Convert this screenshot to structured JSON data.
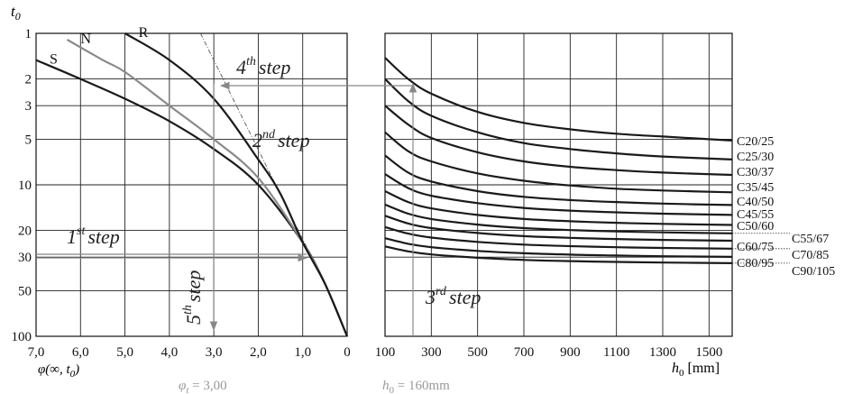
{
  "chart_data": [
    {
      "type": "line",
      "panel": "left",
      "y_axis_label": "t",
      "y_axis_label_sub": "0",
      "x_axis_label": "φ(∞, t",
      "x_axis_label_sub": "0",
      "x_axis_label_end": ")",
      "y_scale": "log-inverted",
      "y_ticks": [
        "1",
        "2",
        "3",
        "5",
        "10",
        "20",
        "30",
        "50",
        "100"
      ],
      "y_tick_values": [
        1,
        2,
        3,
        5,
        10,
        20,
        30,
        50,
        100
      ],
      "x_ticks": [
        "7,0",
        "6,0",
        "5,0",
        "4,0",
        "3,0",
        "2,0",
        "1,0",
        "0"
      ],
      "x_tick_values": [
        7,
        6,
        5,
        4,
        3,
        2,
        1,
        0
      ],
      "xlim": [
        7,
        0
      ],
      "ylim": [
        1,
        100
      ],
      "series": [
        {
          "name": "S",
          "color": "#1a1a1a",
          "points": [
            [
              7.0,
              1.5
            ],
            [
              6.0,
              2.0
            ],
            [
              5.0,
              2.7
            ],
            [
              4.0,
              3.8
            ],
            [
              3.0,
              5.8
            ],
            [
              2.0,
              10
            ],
            [
              1.0,
              24
            ],
            [
              0.5,
              45
            ],
            [
              0.0,
              100
            ]
          ]
        },
        {
          "name": "N",
          "color": "#8a8a8a",
          "points": [
            [
              6.3,
              1.1
            ],
            [
              5.5,
              1.5
            ],
            [
              5.0,
              1.8
            ],
            [
              4.0,
              3.0
            ],
            [
              3.0,
              5.0
            ],
            [
              2.0,
              9.0
            ],
            [
              1.0,
              24
            ],
            [
              0.5,
              45
            ],
            [
              0.0,
              100
            ]
          ]
        },
        {
          "name": "R",
          "color": "#1a1a1a",
          "points": [
            [
              5.0,
              1.0
            ],
            [
              4.0,
              1.5
            ],
            [
              3.0,
              2.7
            ],
            [
              2.0,
              6.8
            ],
            [
              1.5,
              11.5
            ],
            [
              1.0,
              24
            ],
            [
              0.5,
              45
            ],
            [
              0.0,
              100
            ]
          ]
        }
      ],
      "reference_line": {
        "style": "dash-dot",
        "points": [
          [
            3.3,
            1.0
          ],
          [
            0.8,
            30
          ]
        ]
      },
      "steps": [
        {
          "num": "1",
          "sup": "st",
          "word": "step"
        },
        {
          "num": "2",
          "sup": "nd",
          "word": "step"
        },
        {
          "num": "4",
          "sup": "th",
          "word": "step"
        },
        {
          "num": "5",
          "sup": "th",
          "word": "step"
        }
      ],
      "arrows": [
        {
          "from": [
            7.0,
            28
          ],
          "to": [
            1.0,
            28
          ]
        },
        {
          "from": [
            3.0,
            2.2
          ],
          "to": [
            3.0,
            95
          ]
        }
      ],
      "result_note": "φ",
      "result_note_sub": "t",
      "result_note_value": " = 3,00"
    },
    {
      "type": "line",
      "panel": "right",
      "x_axis_label": "h",
      "x_axis_label_sub": "0",
      "x_axis_label_unit": " [mm]",
      "y_scale": "log-inverted",
      "x_ticks": [
        "100",
        "300",
        "500",
        "700",
        "900",
        "1100",
        "1300",
        "1500"
      ],
      "x_tick_values": [
        100,
        300,
        500,
        700,
        900,
        1100,
        1300,
        1500
      ],
      "xlim": [
        100,
        1600
      ],
      "ylim": [
        1,
        100
      ],
      "series": [
        {
          "name": "C20/25",
          "points": [
            [
              100,
              1.45
            ],
            [
              200,
              2.0
            ],
            [
              300,
              2.5
            ],
            [
              500,
              3.3
            ],
            [
              700,
              3.9
            ],
            [
              900,
              4.3
            ],
            [
              1100,
              4.6
            ],
            [
              1300,
              4.8
            ],
            [
              1600,
              5.1
            ]
          ]
        },
        {
          "name": "C25/30",
          "points": [
            [
              100,
              2.0
            ],
            [
              200,
              2.8
            ],
            [
              300,
              3.5
            ],
            [
              500,
              4.5
            ],
            [
              700,
              5.3
            ],
            [
              900,
              5.8
            ],
            [
              1100,
              6.2
            ],
            [
              1300,
              6.5
            ],
            [
              1600,
              6.8
            ]
          ]
        },
        {
          "name": "C30/37",
          "points": [
            [
              100,
              3.0
            ],
            [
              200,
              4.0
            ],
            [
              300,
              4.9
            ],
            [
              500,
              6.1
            ],
            [
              700,
              7.0
            ],
            [
              900,
              7.6
            ],
            [
              1100,
              8.0
            ],
            [
              1300,
              8.3
            ],
            [
              1600,
              8.6
            ]
          ]
        },
        {
          "name": "C35/45",
          "points": [
            [
              100,
              4.5
            ],
            [
              200,
              6.0
            ],
            [
              300,
              7.0
            ],
            [
              500,
              8.4
            ],
            [
              700,
              9.4
            ],
            [
              900,
              10.1
            ],
            [
              1100,
              10.6
            ],
            [
              1300,
              10.9
            ],
            [
              1600,
              11.2
            ]
          ]
        },
        {
          "name": "C40/50",
          "points": [
            [
              100,
              6.4
            ],
            [
              200,
              8.3
            ],
            [
              300,
              9.5
            ],
            [
              500,
              11.0
            ],
            [
              700,
              12.0
            ],
            [
              900,
              12.6
            ],
            [
              1100,
              13.0
            ],
            [
              1300,
              13.3
            ],
            [
              1600,
              13.6
            ]
          ]
        },
        {
          "name": "C45/55",
          "points": [
            [
              100,
              8.5
            ],
            [
              200,
              10.5
            ],
            [
              300,
              11.8
            ],
            [
              500,
              13.2
            ],
            [
              700,
              14.2
            ],
            [
              900,
              14.8
            ],
            [
              1100,
              15.2
            ],
            [
              1300,
              15.5
            ],
            [
              1600,
              15.8
            ]
          ]
        },
        {
          "name": "C50/60",
          "points": [
            [
              100,
              11.0
            ],
            [
              200,
              13.0
            ],
            [
              300,
              14.3
            ],
            [
              500,
              15.8
            ],
            [
              700,
              16.8
            ],
            [
              900,
              17.4
            ],
            [
              1100,
              17.8
            ],
            [
              1300,
              18.1
            ],
            [
              1600,
              18.4
            ]
          ]
        },
        {
          "name": "C55/67",
          "points": [
            [
              100,
              13.5
            ],
            [
              200,
              15.5
            ],
            [
              300,
              16.8
            ],
            [
              500,
              18.3
            ],
            [
              700,
              19.3
            ],
            [
              900,
              19.9
            ],
            [
              1100,
              20.3
            ],
            [
              1300,
              20.6
            ],
            [
              1600,
              20.9
            ]
          ]
        },
        {
          "name": "C60/75",
          "points": [
            [
              100,
              16.0
            ],
            [
              200,
              18.0
            ],
            [
              300,
              19.3
            ],
            [
              500,
              20.8
            ],
            [
              700,
              21.8
            ],
            [
              900,
              22.4
            ],
            [
              1100,
              22.8
            ],
            [
              1300,
              23.1
            ],
            [
              1600,
              23.4
            ]
          ]
        },
        {
          "name": "C70/85",
          "points": [
            [
              100,
              19.0
            ],
            [
              200,
              21.0
            ],
            [
              300,
              22.3
            ],
            [
              500,
              23.8
            ],
            [
              700,
              24.8
            ],
            [
              900,
              25.4
            ],
            [
              1100,
              25.8
            ],
            [
              1300,
              26.1
            ],
            [
              1600,
              26.4
            ]
          ]
        },
        {
          "name": "C80/95",
          "points": [
            [
              100,
              22.5
            ],
            [
              200,
              24.5
            ],
            [
              300,
              25.8
            ],
            [
              500,
              27.3
            ],
            [
              700,
              28.3
            ],
            [
              900,
              28.9
            ],
            [
              1100,
              29.3
            ],
            [
              1300,
              29.6
            ],
            [
              1600,
              29.9
            ]
          ]
        },
        {
          "name": "C90/105",
          "points": [
            [
              100,
              25.5
            ],
            [
              200,
              27.5
            ],
            [
              300,
              28.8
            ],
            [
              500,
              30.3
            ],
            [
              700,
              31.3
            ],
            [
              900,
              31.9
            ],
            [
              1100,
              32.3
            ],
            [
              1300,
              32.6
            ],
            [
              1600,
              32.9
            ]
          ]
        }
      ],
      "steps": [
        {
          "num": "3",
          "sup": "rd",
          "word": "step"
        }
      ],
      "arrows": [
        {
          "from": [
            200,
            100
          ],
          "to": [
            200,
            2.1
          ]
        },
        {
          "from": [
            100,
            2.2
          ],
          "to": [
            100,
            2.2
          ]
        }
      ],
      "result_note": "h",
      "result_note_sub": "0",
      "result_note_value": " = 160mm"
    }
  ]
}
